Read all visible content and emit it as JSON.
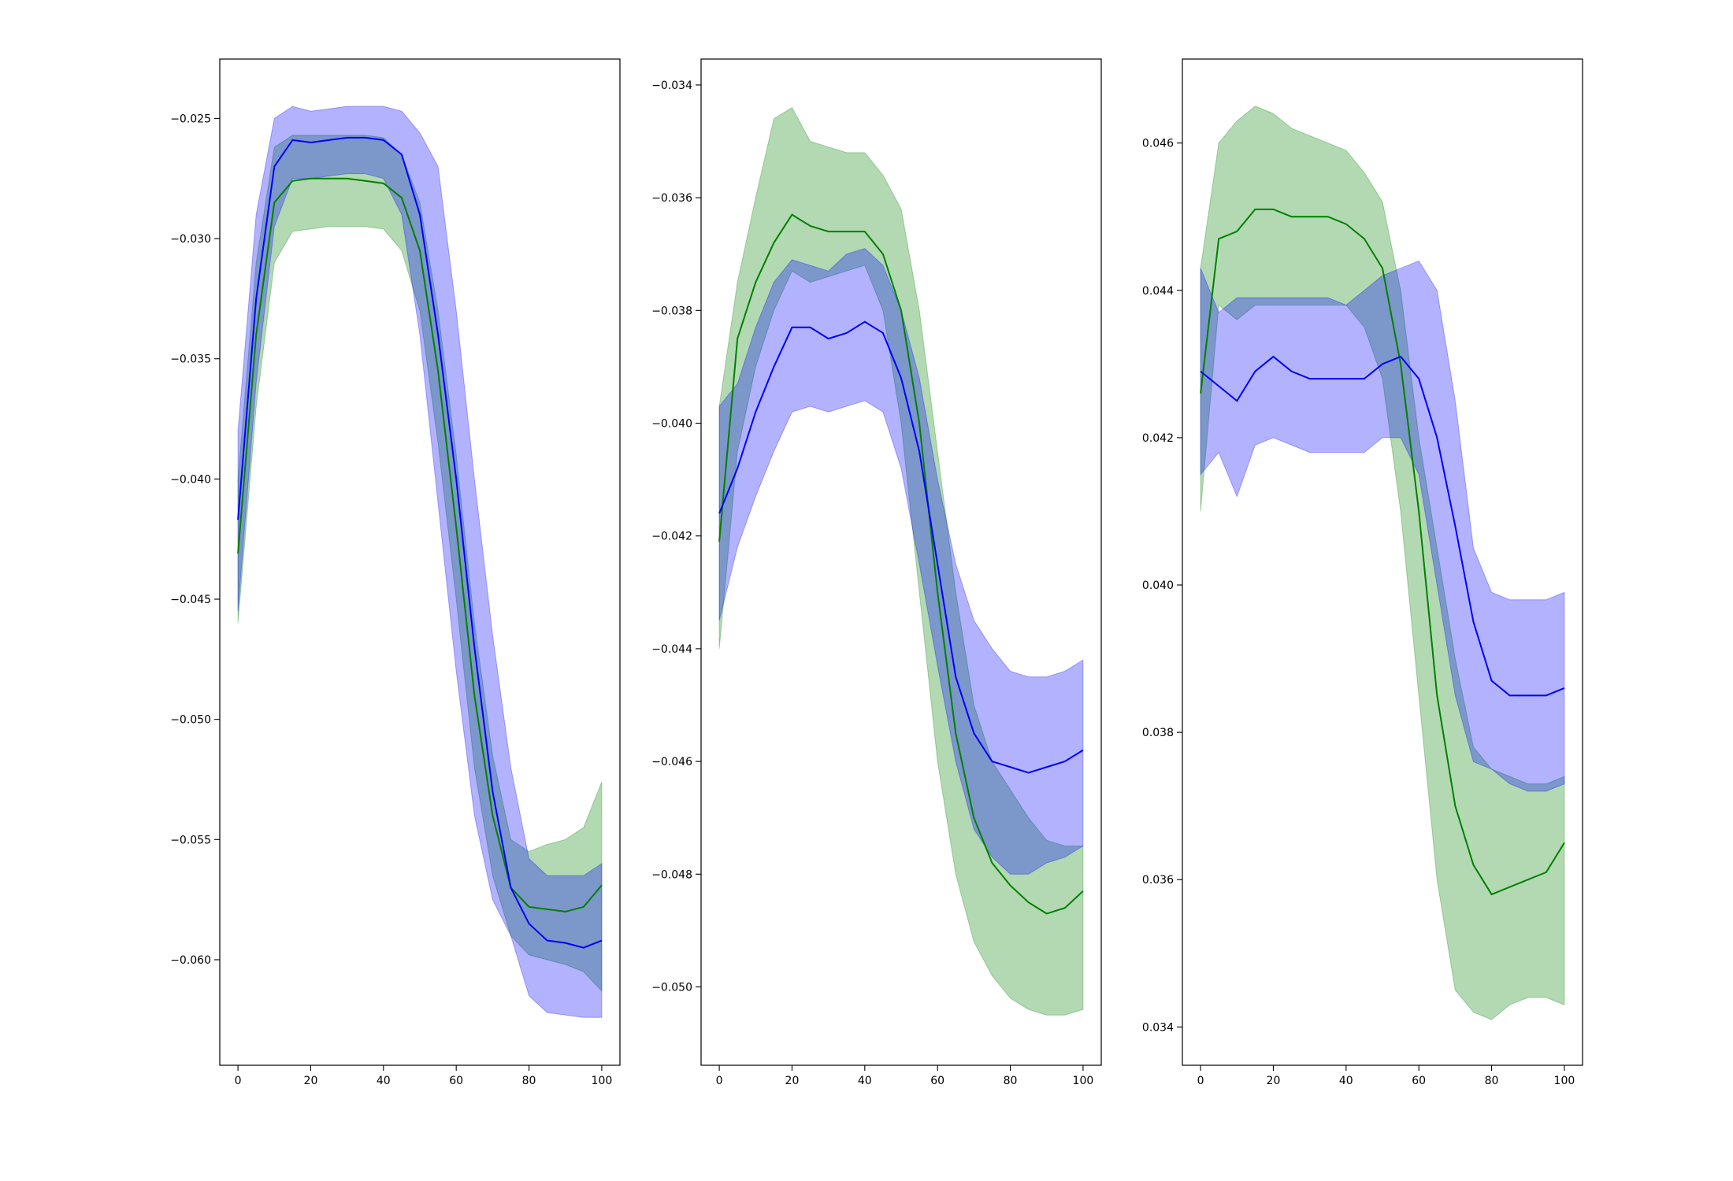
{
  "chart_data": [
    {
      "type": "line",
      "x": [
        0,
        5,
        10,
        15,
        20,
        25,
        30,
        35,
        40,
        45,
        50,
        55,
        60,
        65,
        70,
        75,
        80,
        85,
        90,
        95,
        100
      ],
      "xlim": [
        -5,
        105
      ],
      "xticks": [
        0,
        20,
        40,
        60,
        80,
        100
      ],
      "ylim": [
        -0.06439,
        -0.02253
      ],
      "yticks": [
        {
          "value": -0.06,
          "label": "−0.060"
        },
        {
          "value": -0.055,
          "label": "−0.055"
        },
        {
          "value": -0.05,
          "label": "−0.050"
        },
        {
          "value": -0.045,
          "label": "−0.045"
        },
        {
          "value": -0.04,
          "label": "−0.040"
        },
        {
          "value": -0.035,
          "label": "−0.035"
        },
        {
          "value": -0.03,
          "label": "−0.030"
        },
        {
          "value": -0.025,
          "label": "−0.025"
        }
      ],
      "series": [
        {
          "color": "#008000",
          "values": [
            -0.0431,
            -0.034,
            -0.0285,
            -0.0276,
            -0.0275,
            -0.0275,
            -0.0275,
            -0.0276,
            -0.0277,
            -0.0283,
            -0.0305,
            -0.0355,
            -0.042,
            -0.049,
            -0.054,
            -0.057,
            -0.0578,
            -0.0579,
            -0.058,
            -0.0578,
            -0.0569
          ],
          "upper": [
            -0.04,
            -0.031,
            -0.0262,
            -0.0257,
            -0.0257,
            -0.0257,
            -0.0257,
            -0.0257,
            -0.0258,
            -0.0265,
            -0.0285,
            -0.033,
            -0.039,
            -0.046,
            -0.0515,
            -0.055,
            -0.0555,
            -0.0552,
            -0.055,
            -0.0545,
            -0.0526
          ],
          "lower": [
            -0.046,
            -0.037,
            -0.031,
            -0.0297,
            -0.0296,
            -0.0295,
            -0.0295,
            -0.0295,
            -0.0296,
            -0.0305,
            -0.033,
            -0.0385,
            -0.045,
            -0.052,
            -0.0565,
            -0.059,
            -0.0598,
            -0.06,
            -0.0602,
            -0.0605,
            -0.0613
          ]
        },
        {
          "color": "#0000ff",
          "values": [
            -0.0417,
            -0.0325,
            -0.027,
            -0.0259,
            -0.026,
            -0.0259,
            -0.0258,
            -0.0258,
            -0.0259,
            -0.0265,
            -0.029,
            -0.034,
            -0.04,
            -0.047,
            -0.053,
            -0.057,
            -0.0585,
            -0.0592,
            -0.0593,
            -0.0595,
            -0.0592
          ],
          "upper": [
            -0.038,
            -0.029,
            -0.025,
            -0.0245,
            -0.0247,
            -0.0246,
            -0.0245,
            -0.0245,
            -0.0245,
            -0.0247,
            -0.0256,
            -0.027,
            -0.033,
            -0.04,
            -0.0465,
            -0.052,
            -0.0558,
            -0.0565,
            -0.0565,
            -0.0565,
            -0.056
          ],
          "lower": [
            -0.0455,
            -0.036,
            -0.0295,
            -0.0275,
            -0.0275,
            -0.0274,
            -0.0273,
            -0.0273,
            -0.0275,
            -0.029,
            -0.034,
            -0.041,
            -0.048,
            -0.054,
            -0.0575,
            -0.059,
            -0.0615,
            -0.0622,
            -0.0623,
            -0.0624,
            -0.0624
          ]
        }
      ]
    },
    {
      "type": "line",
      "x": [
        0,
        5,
        10,
        15,
        20,
        25,
        30,
        35,
        40,
        45,
        50,
        55,
        60,
        65,
        70,
        75,
        80,
        85,
        90,
        95,
        100
      ],
      "xlim": [
        -5,
        105
      ],
      "xticks": [
        0,
        20,
        40,
        60,
        80,
        100
      ],
      "ylim": [
        -0.05139,
        -0.03354
      ],
      "yticks": [
        {
          "value": -0.05,
          "label": "−0.050"
        },
        {
          "value": -0.048,
          "label": "−0.048"
        },
        {
          "value": -0.046,
          "label": "−0.046"
        },
        {
          "value": -0.044,
          "label": "−0.044"
        },
        {
          "value": -0.042,
          "label": "−0.042"
        },
        {
          "value": -0.04,
          "label": "−0.040"
        },
        {
          "value": -0.038,
          "label": "−0.038"
        },
        {
          "value": -0.036,
          "label": "−0.036"
        },
        {
          "value": -0.034,
          "label": "−0.034"
        }
      ],
      "series": [
        {
          "color": "#008000",
          "values": [
            -0.0421,
            -0.0385,
            -0.0375,
            -0.0368,
            -0.0363,
            -0.0365,
            -0.0366,
            -0.0366,
            -0.0366,
            -0.037,
            -0.038,
            -0.04,
            -0.043,
            -0.0455,
            -0.047,
            -0.0478,
            -0.0482,
            -0.0485,
            -0.0487,
            -0.0486,
            -0.0483
          ],
          "upper": [
            -0.0397,
            -0.0375,
            -0.036,
            -0.0346,
            -0.0344,
            -0.035,
            -0.0351,
            -0.0352,
            -0.0352,
            -0.0356,
            -0.0362,
            -0.038,
            -0.0405,
            -0.043,
            -0.045,
            -0.046,
            -0.0465,
            -0.047,
            -0.0474,
            -0.0475,
            -0.0475
          ],
          "lower": [
            -0.044,
            -0.0405,
            -0.039,
            -0.038,
            -0.0373,
            -0.0375,
            -0.0374,
            -0.0373,
            -0.0372,
            -0.038,
            -0.04,
            -0.043,
            -0.046,
            -0.048,
            -0.0492,
            -0.0498,
            -0.0502,
            -0.0504,
            -0.0505,
            -0.0505,
            -0.0504
          ]
        },
        {
          "color": "#0000ff",
          "values": [
            -0.0416,
            -0.0408,
            -0.0398,
            -0.039,
            -0.0383,
            -0.0383,
            -0.0385,
            -0.0384,
            -0.0382,
            -0.0384,
            -0.0392,
            -0.0405,
            -0.0425,
            -0.0445,
            -0.0455,
            -0.046,
            -0.0461,
            -0.0462,
            -0.0461,
            -0.046,
            -0.0458
          ],
          "upper": [
            -0.0397,
            -0.0393,
            -0.0383,
            -0.0375,
            -0.0371,
            -0.0372,
            -0.0373,
            -0.037,
            -0.0369,
            -0.0372,
            -0.038,
            -0.0392,
            -0.041,
            -0.0425,
            -0.0435,
            -0.044,
            -0.0444,
            -0.0445,
            -0.0445,
            -0.0444,
            -0.0442
          ],
          "lower": [
            -0.0435,
            -0.0422,
            -0.0413,
            -0.0405,
            -0.0398,
            -0.0397,
            -0.0398,
            -0.0397,
            -0.0396,
            -0.0398,
            -0.0408,
            -0.0425,
            -0.0443,
            -0.046,
            -0.0472,
            -0.0477,
            -0.048,
            -0.048,
            -0.0478,
            -0.0477,
            -0.0475
          ]
        }
      ]
    },
    {
      "type": "line",
      "x": [
        0,
        5,
        10,
        15,
        20,
        25,
        30,
        35,
        40,
        45,
        50,
        55,
        60,
        65,
        70,
        75,
        80,
        85,
        90,
        95,
        100
      ],
      "xlim": [
        -5,
        105
      ],
      "xticks": [
        0,
        20,
        40,
        60,
        80,
        100
      ],
      "ylim": [
        0.03348,
        0.04714
      ],
      "yticks": [
        0.034,
        0.036,
        0.038,
        {
          "value": 0.04,
          "label": "0.040"
        },
        0.042,
        0.044,
        0.046
      ],
      "series": [
        {
          "color": "#008000",
          "values": [
            0.0426,
            0.0447,
            0.0448,
            0.0451,
            0.0451,
            0.045,
            0.045,
            0.045,
            0.0449,
            0.0447,
            0.0443,
            0.043,
            0.041,
            0.0385,
            0.037,
            0.0362,
            0.0358,
            0.0359,
            0.036,
            0.0361,
            0.0365
          ],
          "upper": [
            0.0443,
            0.046,
            0.0463,
            0.0465,
            0.0464,
            0.0462,
            0.0461,
            0.046,
            0.0459,
            0.0456,
            0.0452,
            0.044,
            0.042,
            0.0405,
            0.039,
            0.0378,
            0.0375,
            0.0374,
            0.0373,
            0.0373,
            0.0374
          ],
          "lower": [
            0.041,
            0.0438,
            0.0436,
            0.0438,
            0.0438,
            0.0438,
            0.0438,
            0.0438,
            0.0438,
            0.0435,
            0.0428,
            0.041,
            0.0385,
            0.036,
            0.0345,
            0.0342,
            0.0341,
            0.0343,
            0.0344,
            0.0344,
            0.0343
          ]
        },
        {
          "color": "#0000ff",
          "values": [
            0.0429,
            0.0427,
            0.0425,
            0.0429,
            0.0431,
            0.0429,
            0.0428,
            0.0428,
            0.0428,
            0.0428,
            0.043,
            0.0431,
            0.0428,
            0.042,
            0.0408,
            0.0395,
            0.0387,
            0.0385,
            0.0385,
            0.0385,
            0.0386
          ],
          "upper": [
            0.0443,
            0.0437,
            0.0439,
            0.0439,
            0.0439,
            0.0439,
            0.0439,
            0.0439,
            0.0438,
            0.044,
            0.0442,
            0.0443,
            0.0444,
            0.044,
            0.0425,
            0.0405,
            0.0399,
            0.0398,
            0.0398,
            0.0398,
            0.0399
          ],
          "lower": [
            0.0415,
            0.0418,
            0.0412,
            0.0419,
            0.042,
            0.0419,
            0.0418,
            0.0418,
            0.0418,
            0.0418,
            0.042,
            0.042,
            0.0415,
            0.04,
            0.0385,
            0.0376,
            0.0375,
            0.0373,
            0.0372,
            0.0372,
            0.0373
          ]
        }
      ]
    }
  ]
}
